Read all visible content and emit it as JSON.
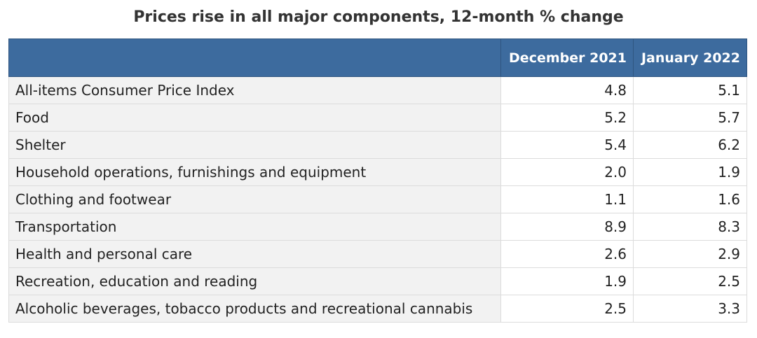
{
  "header": {
    "title": "Prices rise in all major components, 12-month % change"
  },
  "table": {
    "columns": [
      "December 2021",
      "January 2022"
    ],
    "rows": [
      [
        "All-items Consumer Price Index",
        "4.8",
        "5.1"
      ],
      [
        "Food",
        "5.2",
        "5.7"
      ],
      [
        "Shelter",
        "5.4",
        "6.2"
      ],
      [
        "Household operations, furnishings and equipment",
        "2.0",
        "1.9"
      ],
      [
        "Clothing and footwear",
        "1.1",
        "1.6"
      ],
      [
        "Transportation",
        "8.9",
        "8.3"
      ],
      [
        "Health and personal care",
        "2.6",
        "2.9"
      ],
      [
        "Recreation, education and reading",
        "1.9",
        "2.5"
      ],
      [
        "Alcoholic beverages, tobacco products and recreational cannabis",
        "2.5",
        "3.3"
      ]
    ]
  }
}
